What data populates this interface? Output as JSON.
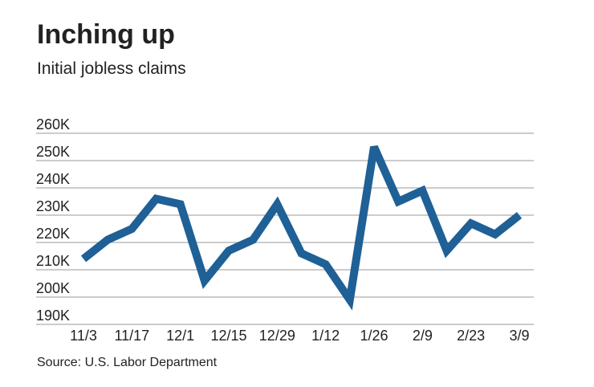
{
  "chart_data": {
    "type": "line",
    "title": "Inching up",
    "subtitle": "Initial jobless claims",
    "source": "Source: U.S. Labor Department",
    "categories": [
      "11/3",
      null,
      "11/17",
      null,
      "12/1",
      null,
      "12/15",
      null,
      "12/29",
      null,
      "1/12",
      null,
      "1/26",
      null,
      "2/9",
      null,
      "2/23",
      null,
      "3/9"
    ],
    "values": [
      214,
      221,
      225,
      236,
      234,
      206,
      217,
      221,
      234,
      216,
      212,
      199,
      255,
      235,
      239,
      217,
      227,
      223,
      230
    ],
    "color": "#1f6096",
    "ylim": [
      190,
      260
    ],
    "yticks": [
      {
        "value": 190,
        "label": "190K"
      },
      {
        "value": 200,
        "label": "200K"
      },
      {
        "value": 210,
        "label": "210K"
      },
      {
        "value": 220,
        "label": "220K"
      },
      {
        "value": 230,
        "label": "230K"
      },
      {
        "value": 240,
        "label": "240K"
      },
      {
        "value": 250,
        "label": "250K"
      },
      {
        "value": 260,
        "label": "260K"
      }
    ],
    "grid": true
  }
}
